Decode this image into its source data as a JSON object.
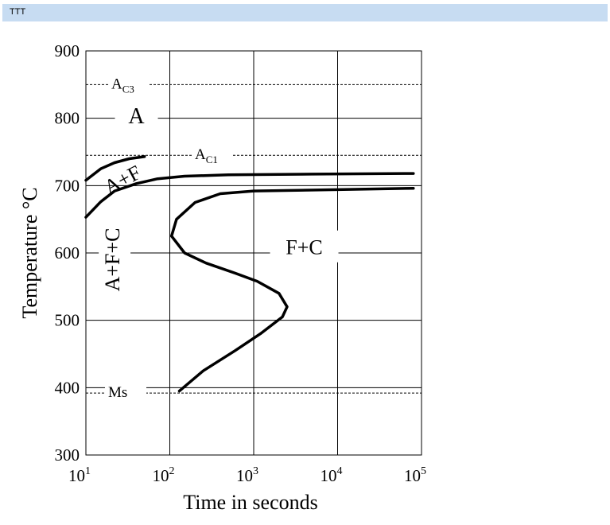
{
  "window": {
    "title": "TTT"
  },
  "chart_data": {
    "type": "line",
    "xlabel": "Time in seconds",
    "ylabel": "Temperature °C",
    "xscale": "log",
    "xlim": [
      10,
      100000
    ],
    "ylim": [
      300,
      900
    ],
    "grid": true,
    "x_ticks": [
      {
        "base": "10",
        "exp": "1",
        "value": 10
      },
      {
        "base": "10",
        "exp": "2",
        "value": 100
      },
      {
        "base": "10",
        "exp": "3",
        "value": 1000
      },
      {
        "base": "10",
        "exp": "4",
        "value": 10000
      },
      {
        "base": "10",
        "exp": "5",
        "value": 100000
      }
    ],
    "y_ticks": [
      "300",
      "400",
      "500",
      "600",
      "700",
      "800",
      "900"
    ],
    "reference_lines": [
      {
        "label_main": "A",
        "label_sub": "C3",
        "y": 850
      },
      {
        "label_main": "A",
        "label_sub": "C1",
        "y": 745
      },
      {
        "label_main": "Ms",
        "label_sub": "",
        "y": 392
      }
    ],
    "regions": [
      {
        "label": "A",
        "x": 40,
        "y": 800
      },
      {
        "label": "A+F",
        "x": 28,
        "y": 706,
        "rotate": -28
      },
      {
        "label": "A+F+C",
        "x": 22,
        "y": 590,
        "rotate": -90
      },
      {
        "label": "F+C",
        "x": 4000,
        "y": 605
      }
    ],
    "series": [
      {
        "points": [
          [
            10,
            708
          ],
          [
            15,
            725
          ],
          [
            22,
            734
          ],
          [
            33,
            740
          ],
          [
            50,
            743
          ]
        ]
      },
      {
        "points": [
          [
            10,
            653
          ],
          [
            15,
            676
          ],
          [
            22,
            692
          ],
          [
            40,
            703
          ],
          [
            70,
            710
          ],
          [
            150,
            714
          ],
          [
            500,
            716
          ],
          [
            5000,
            717
          ],
          [
            80000,
            718
          ]
        ]
      },
      {
        "points": [
          [
            130,
            395
          ],
          [
            250,
            425
          ],
          [
            600,
            455
          ],
          [
            1200,
            480
          ],
          [
            2200,
            505
          ],
          [
            2500,
            520
          ],
          [
            2000,
            540
          ],
          [
            1100,
            558
          ],
          [
            600,
            570
          ],
          [
            270,
            585
          ],
          [
            150,
            600
          ],
          [
            105,
            625
          ],
          [
            120,
            650
          ],
          [
            200,
            675
          ],
          [
            400,
            688
          ],
          [
            1000,
            692
          ],
          [
            10000,
            694
          ],
          [
            80000,
            696
          ]
        ]
      }
    ]
  }
}
